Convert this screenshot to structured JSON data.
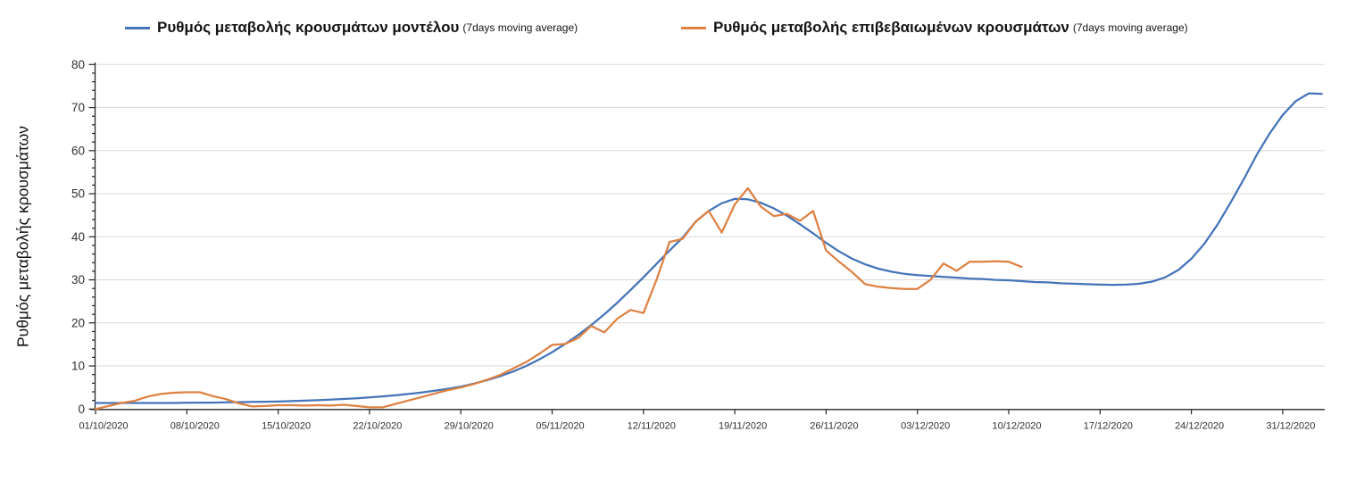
{
  "legend": [
    {
      "label": "Ρυθμός μεταβολής κρουσμάτων μοντέλου",
      "sub": "(7days moving average)",
      "color": "#4474B9"
    },
    {
      "label": "Ρυθμός μεταβολής επιβεβαιωμένων κρουσμάτων",
      "sub": "(7days moving average)",
      "color": "#DE8142"
    }
  ],
  "chart_data": {
    "type": "line",
    "title": "",
    "xlabel": "",
    "ylabel": "Ρυθμός μεταβολής κρουσμάτων",
    "ylim": [
      0,
      80
    ],
    "ytick_interval": 10,
    "ytick_labels": [
      "0",
      "10",
      "20",
      "30",
      "40",
      "50",
      "60",
      "70",
      "80"
    ],
    "y_minor_interval": 2,
    "grid": "horizontal",
    "legend_position": "top",
    "x_tick_labels": [
      "01/10/2020",
      "08/10/2020",
      "15/10/2020",
      "22/10/2020",
      "29/10/2020",
      "05/11/2020",
      "12/11/2020",
      "19/11/2020",
      "26/11/2020",
      "03/12/2020",
      "10/12/2020",
      "17/12/2020",
      "24/12/2020",
      "31/12/2020"
    ],
    "days_per_tick": 7,
    "series": [
      {
        "name": "Ρυθμός μεταβολής κρουσμάτων μοντέλου (7days moving average)",
        "color": "#4474B9",
        "start_day": 0,
        "values": [
          1.4,
          1.4,
          1.4,
          1.4,
          1.4,
          1.4,
          1.4,
          1.45,
          1.5,
          1.5,
          1.55,
          1.6,
          1.65,
          1.7,
          1.75,
          1.85,
          1.95,
          2.05,
          2.2,
          2.35,
          2.5,
          2.7,
          2.95,
          3.2,
          3.5,
          3.85,
          4.25,
          4.7,
          5.2,
          5.9,
          6.7,
          7.6,
          8.7,
          10.0,
          11.5,
          13.2,
          15.1,
          17.2,
          19.5,
          22.0,
          24.7,
          27.6,
          30.6,
          33.7,
          36.8,
          39.8,
          43.5,
          46.0,
          47.8,
          48.8,
          48.7,
          47.9,
          46.6,
          44.9,
          42.9,
          40.8,
          38.6,
          36.6,
          34.9,
          33.6,
          32.6,
          31.9,
          31.4,
          31.1,
          30.9,
          30.7,
          30.5,
          30.3,
          30.2,
          30.0,
          29.9,
          29.7,
          29.5,
          29.4,
          29.2,
          29.1,
          29.0,
          28.9,
          28.85,
          28.9,
          29.1,
          29.6,
          30.6,
          32.3,
          34.9,
          38.4,
          42.8,
          47.9,
          53.3,
          59.0,
          64.0,
          68.3,
          71.5,
          73.3,
          73.2
        ]
      },
      {
        "name": "Ρυθμός μεταβολής επιβεβαιωμένων κρουσμάτων (7days moving average)",
        "color": "#DE8142",
        "start_day": 0,
        "values": [
          0.0,
          0.7,
          1.4,
          1.9,
          2.9,
          3.5,
          3.8,
          3.9,
          3.9,
          3.0,
          2.3,
          1.3,
          0.6,
          0.7,
          0.9,
          0.9,
          0.8,
          0.9,
          0.8,
          1.0,
          0.7,
          0.4,
          0.4,
          1.2,
          2.0,
          2.8,
          3.6,
          4.4,
          5.0,
          5.8,
          6.8,
          7.9,
          9.4,
          10.9,
          12.8,
          14.9,
          15.1,
          16.5,
          19.3,
          17.8,
          21.0,
          23.0,
          22.3,
          30.0,
          38.8,
          39.5,
          43.5,
          46.0,
          41.0,
          47.5,
          51.3,
          47.0,
          44.8,
          45.3,
          43.7,
          46.0,
          36.8,
          34.2,
          31.8,
          29.0,
          28.4,
          28.1,
          27.9,
          27.9,
          30.0,
          33.8,
          32.1,
          34.2,
          34.2,
          34.3,
          34.2,
          33.0
        ]
      }
    ]
  },
  "colors": {
    "grid": "#D9D9D9",
    "axis": "#262626",
    "tick_label": "#303030",
    "background": "#FFFFFF"
  }
}
